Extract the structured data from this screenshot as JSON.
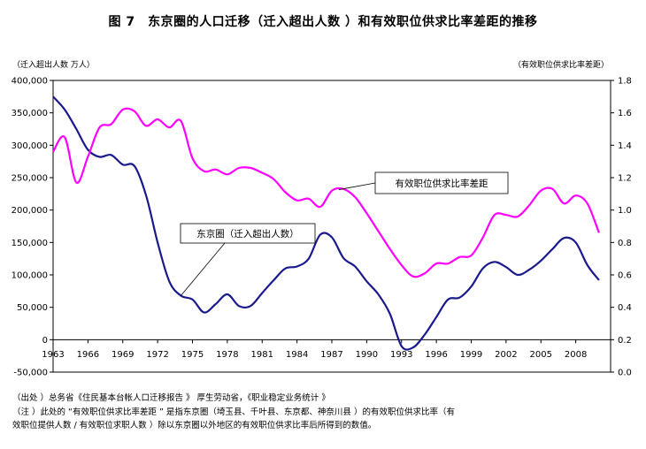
{
  "title": "图 7　东京圈的人口迁移（迁入超出人数 ）和有效职位供求比率差距的推移",
  "chart_data": {
    "type": "line",
    "title": "图 7　东京圈的人口迁移（迁入超出人数 ）和有效职位供求比率差距的推移",
    "y_left_label": "（迁入超出人数 万人）",
    "y_right_label": "（有效职位供求比率差距）",
    "y_left_ticks": [
      "400,000",
      "350,000",
      "300,000",
      "250,000",
      "200,000",
      "150,000",
      "100,000",
      "50,000",
      "0",
      "-50,000"
    ],
    "y_right_ticks": [
      "1.8",
      "1.6",
      "1.4",
      "1.2",
      "1.0",
      "0.8",
      "0.6",
      "0.4",
      "0.2",
      "0.0"
    ],
    "x_ticks": [
      "1963",
      "1966",
      "1969",
      "1972",
      "1975",
      "1978",
      "1981",
      "1984",
      "1987",
      "1990",
      "1993",
      "1996",
      "1999",
      "2002",
      "2005",
      "2008"
    ],
    "x_range": [
      1963,
      2011
    ],
    "ylim_left": [
      -50000,
      400000
    ],
    "ylim_right": [
      0.0,
      1.8
    ],
    "grid": false,
    "series": [
      {
        "name": "东京圈（迁入超出人数）",
        "axis": "left",
        "color": "#1a1a8c",
        "x": [
          1963,
          1964,
          1965,
          1966,
          1967,
          1968,
          1969,
          1970,
          1971,
          1972,
          1973,
          1974,
          1975,
          1976,
          1977,
          1978,
          1979,
          1980,
          1981,
          1982,
          1983,
          1984,
          1985,
          1986,
          1987,
          1988,
          1989,
          1990,
          1991,
          1992,
          1993,
          1994,
          1995,
          1996,
          1997,
          1998,
          1999,
          2000,
          2001,
          2002,
          2003,
          2004,
          2005,
          2006,
          2007,
          2008,
          2009,
          2010
        ],
        "values": [
          375000,
          355000,
          325000,
          293000,
          282000,
          285000,
          270000,
          268000,
          223000,
          150000,
          90000,
          68000,
          62000,
          42000,
          55000,
          70000,
          52000,
          52000,
          72000,
          92000,
          110000,
          113000,
          125000,
          162000,
          158000,
          126000,
          113000,
          90000,
          70000,
          40000,
          -10000,
          -12000,
          8000,
          35000,
          62000,
          65000,
          82000,
          110000,
          120000,
          112000,
          100000,
          108000,
          122000,
          140000,
          157000,
          150000,
          115000,
          92000
        ]
      },
      {
        "name": "有效职位供求比率差距",
        "axis": "right",
        "color": "#ff00ff",
        "x": [
          1963,
          1964,
          1965,
          1966,
          1967,
          1968,
          1969,
          1970,
          1971,
          1972,
          1973,
          1974,
          1975,
          1976,
          1977,
          1978,
          1979,
          1980,
          1981,
          1982,
          1983,
          1984,
          1985,
          1986,
          1987,
          1988,
          1989,
          1990,
          1991,
          1992,
          1993,
          1994,
          1995,
          1996,
          1997,
          1998,
          1999,
          2000,
          2001,
          2002,
          2003,
          2004,
          2005,
          2006,
          2007,
          2008,
          2009,
          2010
        ],
        "values": [
          1.36,
          1.45,
          1.17,
          1.33,
          1.51,
          1.53,
          1.62,
          1.61,
          1.52,
          1.56,
          1.51,
          1.55,
          1.32,
          1.24,
          1.25,
          1.22,
          1.26,
          1.26,
          1.23,
          1.19,
          1.11,
          1.06,
          1.07,
          1.02,
          1.12,
          1.13,
          1.08,
          0.98,
          0.87,
          0.76,
          0.66,
          0.59,
          0.61,
          0.67,
          0.67,
          0.71,
          0.72,
          0.83,
          0.97,
          0.97,
          0.96,
          1.03,
          1.12,
          1.13,
          1.04,
          1.09,
          1.04,
          0.86
        ]
      }
    ],
    "annotations": [
      {
        "text": "东京圈（迁入超出人数）",
        "series": "东京圈（迁入超出人数）"
      },
      {
        "text": "有效职位供求比率差距",
        "series": "有效职位供求比率差距"
      }
    ]
  },
  "notes": [
    "（出处 ）总务省《住民基本台帐人口迁移报告 》 厚生劳动省，《职业稳定业务统计 》",
    "（注 ）此处的 “有效职位供求比率差距 ” 是指东京圈（埼玉县、千叶县、东京都、神奈川县 ）的有效职位供求比率（有",
    "效职位提供人数 / 有效职位求职人数 ）除以东京圈以外地区的有效职位供求比率后所得到的数值。"
  ]
}
